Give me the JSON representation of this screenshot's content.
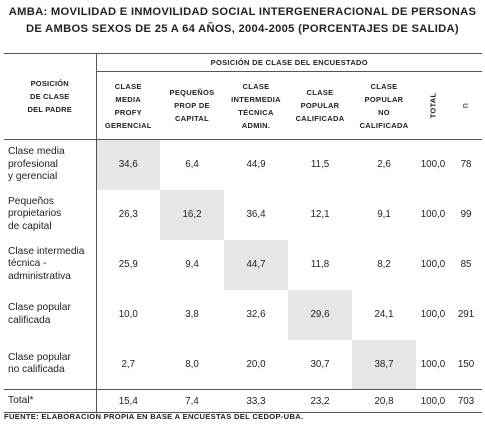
{
  "title": {
    "line1": "AMBA: MOVILIDAD E INMOVILIDAD SOCIAL INTERGENERACIONAL DE PERSONAS",
    "line2": "DE AMBOS SEXOS DE 25 A 64 AÑOS, 2004-2005 (PORCENTAJES DE SALIDA)"
  },
  "table": {
    "group_header": "POSICIÓN DE CLASE DEL ENCUESTADO",
    "row_header": [
      "POSICIÓN",
      "DE CLASE",
      "DEL PADRE"
    ],
    "columns": [
      [
        "CLASE",
        "MEDIA",
        "PROFY",
        "GERENCIAL"
      ],
      [
        "PEQUEÑOS",
        "PROP DE",
        "CAPITAL"
      ],
      [
        "CLASE",
        "INTERMEDIA",
        "TÉCNICA",
        "ADMIN."
      ],
      [
        "CLASE",
        "POPULAR",
        "CALIFICADA"
      ],
      [
        "CLASE",
        "POPULAR",
        "NO",
        "CALIFICADA"
      ]
    ],
    "total_header": "TOTAL",
    "n_header": "n",
    "rows": [
      {
        "label": [
          "Clase media",
          "profesional",
          "y gerencial"
        ],
        "values": [
          "34,6",
          "6,4",
          "44,9",
          "11,5",
          "2,6"
        ],
        "total": "100,0",
        "n": "78",
        "highlight": 0
      },
      {
        "label": [
          "Pequeños",
          "propietarios",
          "de capital"
        ],
        "values": [
          "26,3",
          "16,2",
          "36,4",
          "12,1",
          "9,1"
        ],
        "total": "100,0",
        "n": "99",
        "highlight": 1
      },
      {
        "label": [
          "Clase intermedia",
          "técnica -",
          "administrativa"
        ],
        "values": [
          "25,9",
          "9,4",
          "44,7",
          "11,8",
          "8,2"
        ],
        "total": "100,0",
        "n": "85",
        "highlight": 2
      },
      {
        "label": [
          "Clase popular",
          "calificada"
        ],
        "values": [
          "10,0",
          "3,8",
          "32,6",
          "29,6",
          "24,1"
        ],
        "total": "100,0",
        "n": "291",
        "highlight": 3
      },
      {
        "label": [
          "Clase popular",
          "no calificada"
        ],
        "values": [
          "2,7",
          "8,0",
          "20,0",
          "30,7",
          "38,7"
        ],
        "total": "100,0",
        "n": "150",
        "highlight": 4
      }
    ],
    "total_row": {
      "label": "Total*",
      "values": [
        "15,4",
        "7,4",
        "33,3",
        "23,2",
        "20,8"
      ],
      "total": "100,0",
      "n": "703"
    }
  },
  "footer": "FUENTE: ELABORACIÓN PROPIA EN BASE A ENCUESTAS DEL CEDOP-UBA."
}
